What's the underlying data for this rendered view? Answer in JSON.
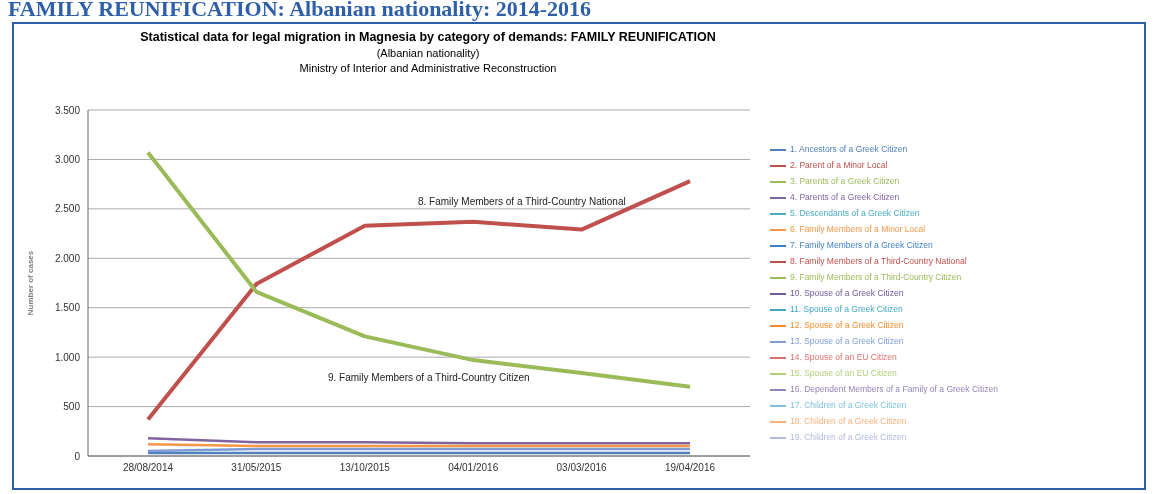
{
  "chart_data": {
    "type": "line",
    "title": "Statistical data for legal migration in Magnesia by category of demands: FAMILY REUNIFICATION",
    "subtitle": "(Albanian nationality)",
    "ylabel": "Number of cases",
    "annotations": [
      "FAMILY REUNIFICATION: Albanian nationality: 2014-2016",
      "Ministry of Interior and Administrative Reconstruction",
      "8. Family Members of a Third-Country National",
      "9. Family Members of a Third-Country Citizen"
    ],
    "categories": [
      "28/08/2014",
      "31/05/2015",
      "13/10/2015",
      "04/01/2016",
      "03/03/2016",
      "19/04/2016"
    ],
    "ylim": [
      0,
      3500
    ],
    "yticks": [
      0,
      {
        "value": 500,
        "label": "500"
      },
      {
        "value": 1000,
        "label": "1.000"
      },
      {
        "value": 1500,
        "label": "1.500"
      },
      {
        "value": 2000,
        "label": "2.000"
      },
      {
        "value": 2500,
        "label": "2.500"
      },
      {
        "value": 3000,
        "label": "3.000"
      },
      {
        "value": 3500,
        "label": "3.500"
      }
    ],
    "grid": "y",
    "legend": "right",
    "marker": "none",
    "series": [
      {
        "name": "1. Ancestors of a Greek Citizen",
        "color": "#4f81bd",
        "values": [
          30,
          30,
          30,
          30,
          30,
          30
        ]
      },
      {
        "name": "2. Parent of a Minor Local",
        "color": "#c0504d",
        "values": [
          null,
          null,
          null,
          null,
          null,
          null
        ]
      },
      {
        "name": "3. Parents of a Greek Citizen",
        "color": "#9bbb59",
        "values": [
          null,
          null,
          null,
          null,
          null,
          null
        ]
      },
      {
        "name": "4. Parents of a Greek Citizen",
        "color": "#8064a2",
        "values": [
          180,
          140,
          140,
          130,
          130,
          130
        ]
      },
      {
        "name": "5. Descendants of a Greek Citizen",
        "color": "#4bacc6",
        "values": [
          null,
          null,
          null,
          null,
          null,
          null
        ]
      },
      {
        "name": "6. Family Members of a Minor Local",
        "color": "#f79646",
        "values": [
          120,
          100,
          100,
          100,
          100,
          100
        ]
      },
      {
        "name": "7. Family Members of a Greek Citizen",
        "color": "#3e80c8",
        "values": [
          null,
          null,
          null,
          null,
          null,
          null
        ]
      },
      {
        "name": "8. Family Members of a Third-Country National",
        "color": "#c0504d",
        "values": [
          370,
          1740,
          2330,
          2370,
          2290,
          2780
        ]
      },
      {
        "name": "9. Family Members of a Third-Country Citizen",
        "color": "#9bbb59",
        "values": [
          3070,
          1660,
          1210,
          970,
          840,
          700
        ]
      },
      {
        "name": "10. Spouse of a Greek Citizen",
        "color": "#6f5a9a",
        "values": [
          null,
          null,
          null,
          null,
          null,
          null
        ]
      },
      {
        "name": "11. Spouse of a Greek Citizen",
        "color": "#3fa9c4",
        "values": [
          null,
          null,
          null,
          null,
          null,
          null
        ]
      },
      {
        "name": "12. Spouse of a Greek Citizen",
        "color": "#f58a2c",
        "values": [
          null,
          null,
          null,
          null,
          null,
          null
        ]
      },
      {
        "name": "13. Spouse of a Greek Citizen",
        "color": "#7f9dd4",
        "values": [
          50,
          70,
          70,
          70,
          70,
          70
        ]
      },
      {
        "name": "14. Spouse of an EU Citizen",
        "color": "#d9716f",
        "values": [
          null,
          null,
          null,
          null,
          null,
          null
        ]
      },
      {
        "name": "15. Spouse of an EU Citizen",
        "color": "#b0cf7a",
        "values": [
          null,
          null,
          null,
          null,
          null,
          null
        ]
      },
      {
        "name": "16. Dependent Members of a Family of a Greek Citizen",
        "color": "#9585b5",
        "values": [
          null,
          null,
          null,
          null,
          null,
          null
        ]
      },
      {
        "name": "17. Children of a Greek Citizen",
        "color": "#7fc0dc",
        "values": [
          null,
          null,
          null,
          null,
          null,
          null
        ]
      },
      {
        "name": "18. Children of a Greek Citizen",
        "color": "#f9b07a",
        "values": [
          null,
          null,
          null,
          null,
          null,
          null
        ]
      },
      {
        "name": "19. Children of a Greek Citizen",
        "color": "#b6b8e0",
        "values": [
          null,
          null,
          null,
          null,
          null,
          null
        ]
      }
    ]
  }
}
